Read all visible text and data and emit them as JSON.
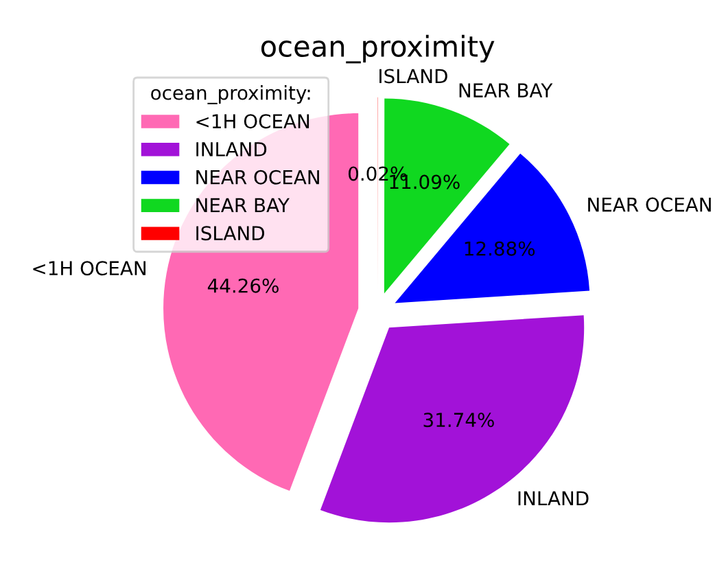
{
  "chart_data": {
    "type": "pie",
    "title": "ocean_proximity",
    "legend_title": "ocean_proximity:",
    "legend": "top left",
    "categories": [
      "<1H OCEAN",
      "INLAND",
      "NEAR OCEAN",
      "NEAR BAY",
      "ISLAND"
    ],
    "values": [
      44.26,
      31.74,
      12.88,
      11.09,
      0.02
    ],
    "value_labels": [
      "44.26%",
      "31.74%",
      "12.88%",
      "11.09%",
      "0.02%"
    ],
    "colors": [
      "#ff69b4",
      "#a212d8",
      "#0000ff",
      "#10d820",
      "#ff0000"
    ]
  }
}
